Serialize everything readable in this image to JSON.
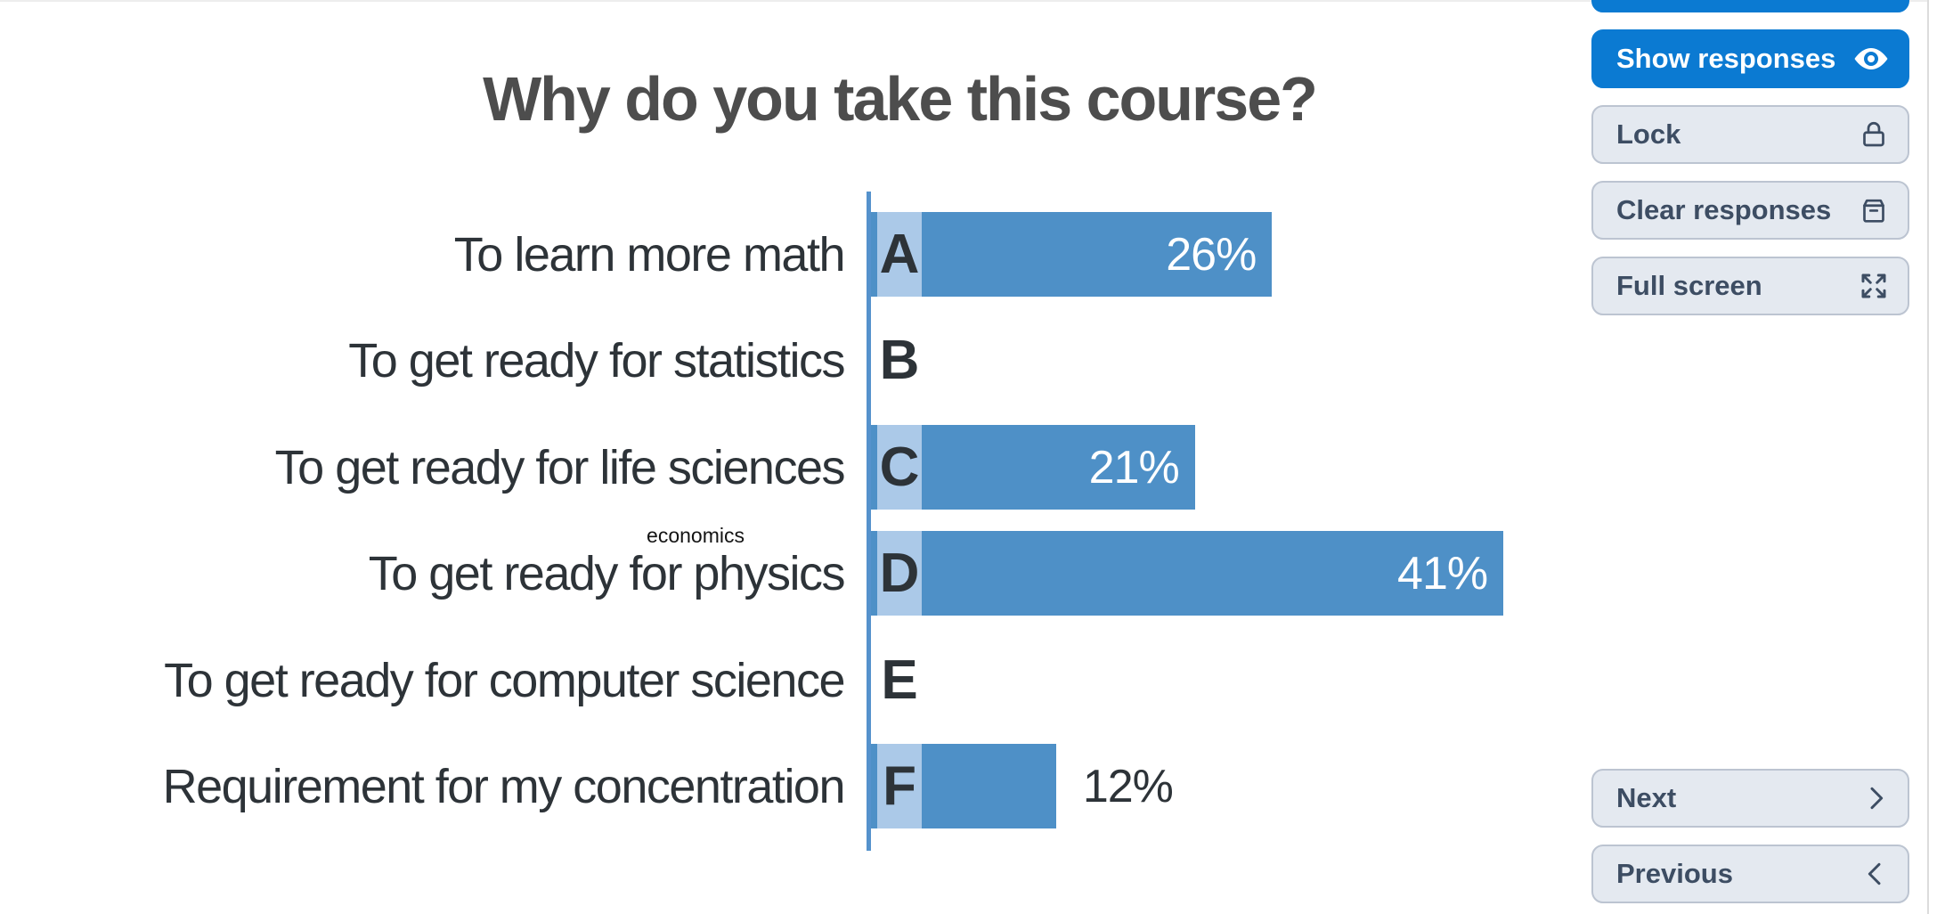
{
  "title": "Why do you take this course?",
  "chart_data": {
    "type": "bar",
    "orientation": "horizontal",
    "title": "Why do you take this course?",
    "categories": [
      "To learn more math",
      "To get ready for statistics",
      "To get ready for life sciences",
      "To get ready for physics",
      "To get ready for computer science",
      "Requirement for my concentration"
    ],
    "letters": [
      "A",
      "B",
      "C",
      "D",
      "E",
      "F"
    ],
    "values": [
      26,
      0,
      21,
      41,
      0,
      12
    ],
    "value_labels": [
      "26%",
      "",
      "21%",
      "41%",
      "",
      "12%"
    ],
    "unit": "percent",
    "xlim": [
      0,
      41
    ],
    "annotation": {
      "text": "economics",
      "above_category_index": 3
    },
    "bar_color": "#4E90C7",
    "letter_badge_color": "#ABC9E8",
    "axis_color": "#5592CC",
    "legend": "none",
    "grid": false
  },
  "sidebar": {
    "buttons": [
      {
        "label": "Show responses",
        "icon": "eye-icon",
        "style": "primary"
      },
      {
        "label": "Lock",
        "icon": "lock-icon",
        "style": "secondary"
      },
      {
        "label": "Clear responses",
        "icon": "archive-box-icon",
        "style": "secondary"
      },
      {
        "label": "Full screen",
        "icon": "expand-icon",
        "style": "secondary"
      }
    ],
    "nav": [
      {
        "label": "Next",
        "icon": "chevron-right-icon",
        "style": "secondary"
      },
      {
        "label": "Previous",
        "icon": "chevron-left-icon",
        "style": "secondary"
      }
    ],
    "colors": {
      "primary": "#0B7AD2",
      "secondary_bg": "#E4E9F0",
      "secondary_border": "#BCC4D1",
      "secondary_text": "#3D4D63"
    }
  }
}
